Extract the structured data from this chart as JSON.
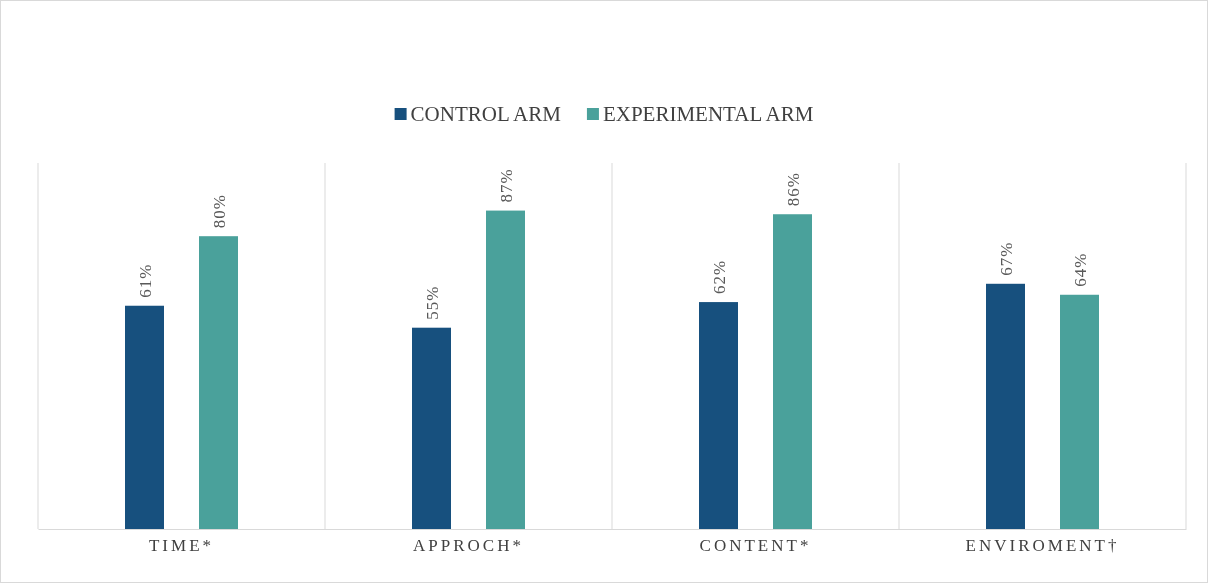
{
  "chart_data": {
    "type": "bar",
    "categories": [
      "TIME*",
      "APPROCH*",
      "CONTENT*",
      "ENVIROMENT†"
    ],
    "series": [
      {
        "name": "CONTROL ARM",
        "color": "#17507e",
        "values": [
          61,
          55,
          62,
          67
        ],
        "value_labels": [
          "61%",
          "55%",
          "62%",
          "67%"
        ]
      },
      {
        "name": "EXPERIMENTAL ARM",
        "color": "#4aa19b",
        "values": [
          80,
          87,
          86,
          64
        ],
        "value_labels": [
          "80%",
          "87%",
          "86%",
          "64%"
        ]
      }
    ],
    "ylim": [
      0,
      100
    ],
    "tick_labels": "x",
    "legend": "top",
    "grid": false
  }
}
